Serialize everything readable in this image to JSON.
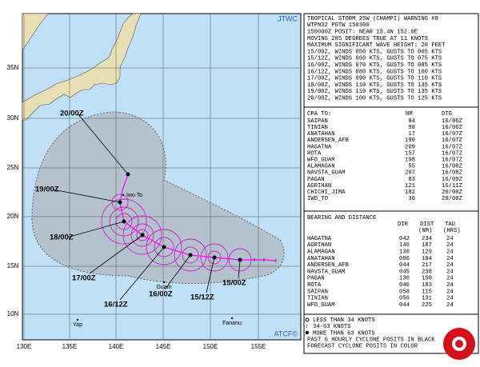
{
  "map": {
    "agency": "JTWC",
    "credit": "ATCF©",
    "lat_labels": [
      "35N",
      "30N",
      "25N",
      "20N",
      "15N",
      "10N"
    ],
    "lon_labels": [
      "130E",
      "135E",
      "140E",
      "145E",
      "150E",
      "155E"
    ],
    "track_labels": [
      "20/00Z",
      "19/00Z",
      "18/00Z",
      "17/00Z",
      "16/12Z",
      "16/00Z",
      "15/12Z",
      "15/00Z"
    ],
    "places": [
      "Iwo To",
      "Guam",
      "Yap",
      "Fananu"
    ]
  },
  "panel": {
    "header": [
      "TROPICAL STORM 25W (CHAMPI) WARNING #8",
      "WTPN32 PGTW 150300",
      "150000Z POSIT: NEAR 15.4N 152.6E",
      "MOVING 285 DEGREES TRUE AT 11 KNOTS",
      "MAXIMUM SIGNIFICANT WAVE HEIGHT: 20 FEET",
      "15/00Z, WINDS 050 KTS, GUSTS TO 065 KTS",
      "15/12Z, WINDS 060 KTS, GUSTS TO 075 KTS",
      "16/00Z, WINDS 070 KTS, GUSTS TO 085 KTS",
      "16/12Z, WINDS 080 KTS, GUSTS TO 100 KTS",
      "17/00Z, WINDS 090 KTS, GUSTS TO 110 KTS",
      "18/00Z, WINDS 110 KTS, GUSTS TO 135 KTS",
      "19/00Z, WINDS 110 KTS, GUSTS TO 135 KTS",
      "20/00Z, WINDS 100 KTS, GUSTS TO 125 KTS"
    ],
    "cpa": {
      "columns": [
        "CPA TO:",
        "NM",
        "DTG"
      ],
      "rows": [
        [
          "SAIPAN",
          "84",
          "16/06Z"
        ],
        [
          "TINIAN",
          "98",
          "16/06Z"
        ],
        [
          "ANATAHAN",
          "17",
          "16/07Z"
        ],
        [
          "ANDERSEN_AFB",
          "190",
          "16/07Z"
        ],
        [
          "HAGATNA",
          "209",
          "16/07Z"
        ],
        [
          "ROTA",
          "157",
          "16/07Z"
        ],
        [
          "WFO_GUAM",
          "198",
          "16/07Z"
        ],
        [
          "ALAMAGAN",
          "55",
          "16/08Z"
        ],
        [
          "NAVSTA_GUAM",
          "207",
          "16/08Z"
        ],
        [
          "PAGAN",
          "83",
          "16/09Z"
        ],
        [
          "AGRIHAN",
          "121",
          "16/11Z"
        ],
        [
          "CHICHI_JIMA",
          "182",
          "20/00Z"
        ],
        [
          "IWO_TO",
          "36",
          "20/00Z"
        ]
      ]
    },
    "bearing": {
      "columns": [
        "BEARING AND DISTANCE",
        "DIR",
        "DIST",
        "TAU"
      ],
      "units": [
        "(NM)",
        "(HRS)"
      ],
      "rows": [
        [
          "HAGATNA",
          "042",
          "234",
          "24"
        ],
        [
          "AGRIHAN",
          "146",
          "187",
          "24"
        ],
        [
          "ALAMAGAN",
          "130",
          "129",
          "24"
        ],
        [
          "ANATAHAN",
          "096",
          "104",
          "24"
        ],
        [
          "ANDERSEN_AFB",
          "044",
          "217",
          "24"
        ],
        [
          "NAVSTA_GUAM",
          "045",
          "238",
          "24"
        ],
        [
          "PAGAN",
          "130",
          "150",
          "24"
        ],
        [
          "ROTA",
          "046",
          "183",
          "24"
        ],
        [
          "SAIPAN",
          "058",
          "115",
          "24"
        ],
        [
          "TINIAN",
          "056",
          "131",
          "24"
        ],
        [
          "WFO_GUAM",
          "044",
          "225",
          "24"
        ]
      ]
    },
    "legend": [
      "LESS THAN 34 KNOTS",
      "34-63 KNOTS",
      "MORE THAN 63 KNOTS",
      "PAST 6 HOURLY CYCLONE POSITS IN BLACK",
      "FORECAST CYCLONE POSITS IN COLOR"
    ]
  }
}
